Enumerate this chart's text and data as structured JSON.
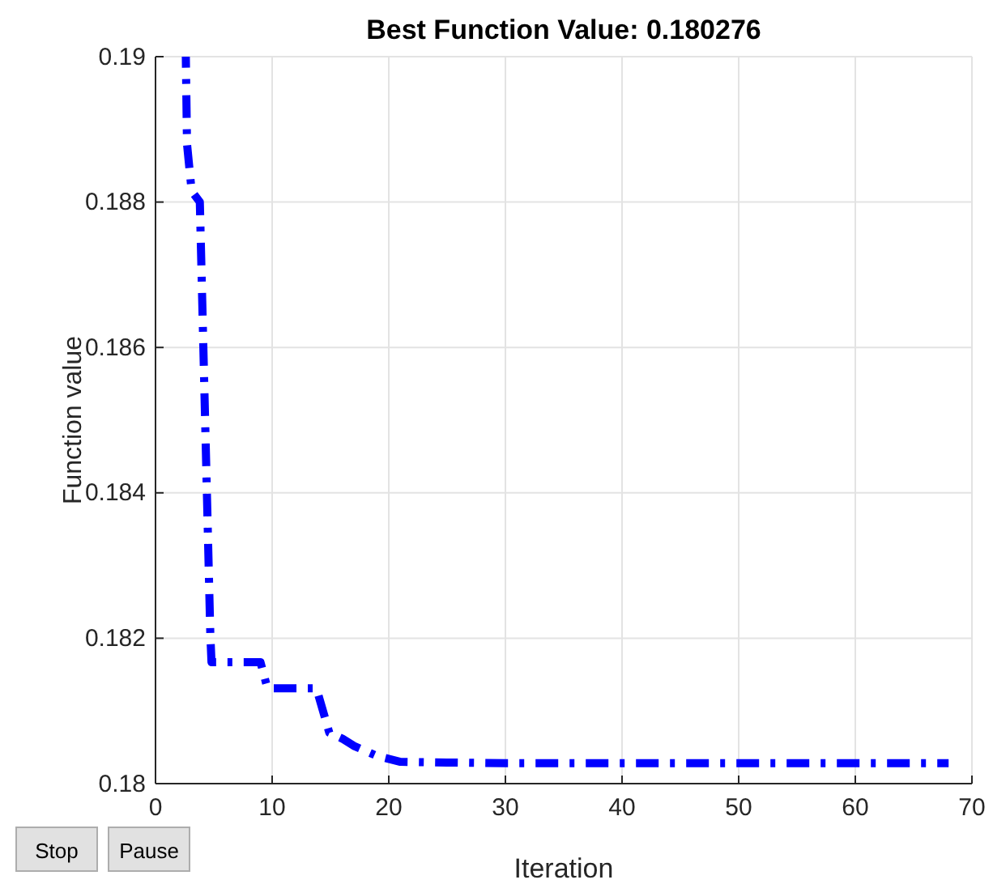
{
  "chart_data": {
    "type": "line",
    "title": "Best Function Value: 0.180276",
    "xlabel": "Iteration",
    "ylabel": "Function value",
    "series": [
      {
        "color": "#0000ff",
        "x": [
          2.6,
          2.7,
          3.1,
          3.8,
          4.7,
          4.8,
          9,
          9.6,
          13.8,
          14.9,
          16,
          17,
          19,
          21,
          25,
          30,
          68
        ],
        "values": [
          0.19,
          0.1888,
          0.18815,
          0.188,
          0.18205,
          0.18167,
          0.18167,
          0.18131,
          0.18131,
          0.1807,
          0.18062,
          0.18052,
          0.18038,
          0.1803,
          0.18029,
          0.18028,
          0.18028
        ]
      }
    ],
    "xlim": [
      0,
      70
    ],
    "xticks": [
      0,
      10,
      20,
      30,
      40,
      50,
      60,
      70
    ],
    "ylim": [
      0.18,
      0.19
    ],
    "yticks": [
      0.18,
      0.182,
      0.184,
      0.186,
      0.188,
      0.19
    ],
    "grid": true,
    "line_style": "dashed",
    "marker": "none",
    "annotations": [
      "Stop",
      "Pause"
    ]
  }
}
